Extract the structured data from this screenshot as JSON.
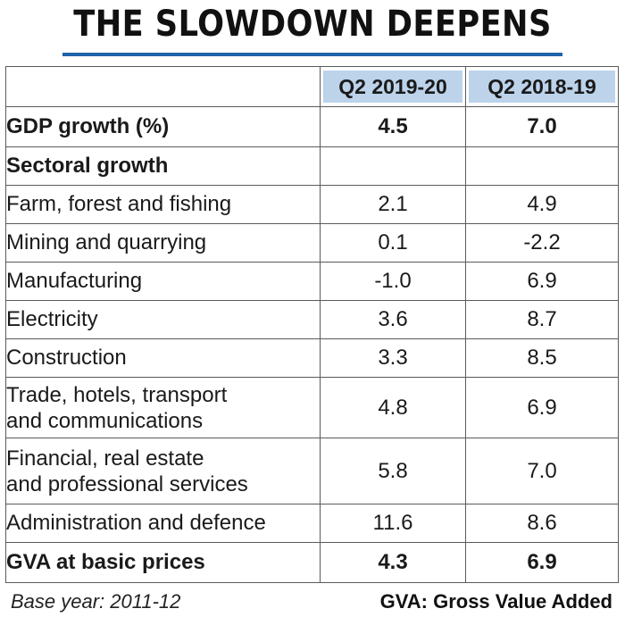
{
  "chart_data": {
    "type": "table",
    "title": "THE SLOWDOWN DEEPENS",
    "columns": [
      "",
      "Q2 2019-20",
      "Q2 2018-19"
    ],
    "rows": [
      {
        "label": "GDP growth (%)",
        "q2_2019_20": "4.5",
        "q2_2018_19": "7.0",
        "bold": true
      },
      {
        "label": "Sectoral growth",
        "q2_2019_20": "",
        "q2_2018_19": "",
        "bold": true
      },
      {
        "label": "Farm, forest and fishing",
        "q2_2019_20": "2.1",
        "q2_2018_19": "4.9"
      },
      {
        "label": "Mining and quarrying",
        "q2_2019_20": "0.1",
        "q2_2018_19": "-2.2"
      },
      {
        "label": "Manufacturing",
        "q2_2019_20": "-1.0",
        "q2_2018_19": "6.9"
      },
      {
        "label": "Electricity",
        "q2_2019_20": "3.6",
        "q2_2018_19": "8.7"
      },
      {
        "label": "Construction",
        "q2_2019_20": "3.3",
        "q2_2018_19": "8.5"
      },
      {
        "label": "Trade, hotels, transport and communications",
        "label_lines": [
          "Trade, hotels, transport",
          "and communications"
        ],
        "q2_2019_20": "4.8",
        "q2_2018_19": "6.9"
      },
      {
        "label": "Financial, real estate and professional services",
        "label_lines": [
          "Financial, real estate",
          "and professional services"
        ],
        "q2_2019_20": "5.8",
        "q2_2018_19": "7.0"
      },
      {
        "label": "Administration and defence",
        "q2_2019_20": "11.6",
        "q2_2018_19": "8.6"
      },
      {
        "label": "GVA at basic prices",
        "q2_2019_20": "4.3",
        "q2_2018_19": "6.9",
        "bold": true
      }
    ],
    "footnotes": {
      "left": "Base year: 2011-12",
      "right": "GVA: Gross Value Added"
    }
  },
  "colors": {
    "title_rule": "#1f63a8",
    "header_fill": "#bcd3ea",
    "border": "#5a5a5a"
  }
}
